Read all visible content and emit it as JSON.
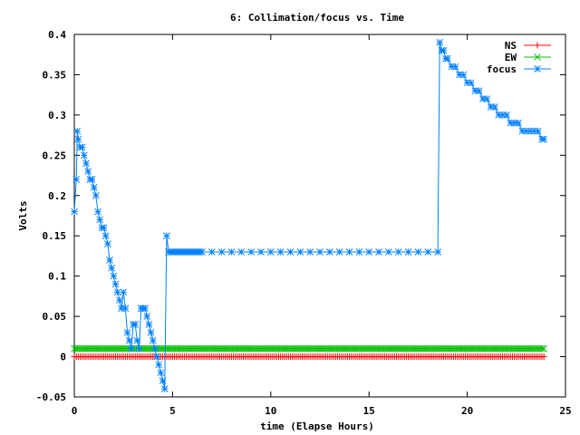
{
  "chart_data": {
    "type": "line",
    "title": "6: Collimation/focus vs. Time",
    "xlabel": "time (Elapse Hours)",
    "ylabel": "Volts",
    "xlim": [
      0,
      25
    ],
    "ylim": [
      -0.05,
      0.4
    ],
    "xticks": [
      0,
      5,
      10,
      15,
      20,
      25
    ],
    "xtick_labels": [
      "0",
      "5",
      "10",
      "15",
      "20",
      "25"
    ],
    "yticks": [
      -0.05,
      0,
      0.05,
      0.1,
      0.15,
      0.2,
      0.25,
      0.3,
      0.35,
      0.4
    ],
    "ytick_labels": [
      "-0.05",
      "0",
      "0.05",
      "0.1",
      "0.15",
      "0.2",
      "0.25",
      "0.3",
      "0.35",
      "0.4"
    ],
    "grid": false,
    "legend_position": "top-right",
    "series": [
      {
        "name": "NS",
        "color": "#ff0000",
        "marker": "plus",
        "x_range": [
          0,
          23.9
        ],
        "constant_y": 0.0,
        "points_per_hour": 10
      },
      {
        "name": "EW",
        "color": "#00c000",
        "marker": "cross",
        "x_range": [
          0,
          23.9
        ],
        "constant_y": 0.01,
        "points_per_hour": 10
      },
      {
        "name": "focus",
        "color": "#0080ff",
        "marker": "star",
        "x": [
          0.0,
          0.1,
          0.15,
          0.2,
          0.3,
          0.4,
          0.5,
          0.6,
          0.7,
          0.8,
          0.9,
          1.0,
          1.1,
          1.2,
          1.3,
          1.4,
          1.5,
          1.6,
          1.7,
          1.8,
          1.9,
          2.0,
          2.1,
          2.2,
          2.3,
          2.4,
          2.5,
          2.6,
          2.7,
          2.8,
          2.9,
          3.0,
          3.1,
          3.2,
          3.3,
          3.4,
          3.5,
          3.6,
          3.7,
          3.8,
          3.9,
          4.0,
          4.1,
          4.2,
          4.3,
          4.4,
          4.5,
          4.6,
          4.7,
          4.8,
          4.9,
          5.0,
          5.1,
          5.2,
          5.3,
          5.4,
          5.5,
          5.6,
          5.7,
          5.8,
          5.9,
          6.0,
          6.1,
          6.2,
          6.3,
          6.4,
          6.5,
          7.0,
          7.5,
          8.0,
          8.5,
          9.0,
          9.5,
          10.0,
          10.5,
          11.0,
          11.5,
          12.0,
          12.5,
          13.0,
          13.5,
          14.0,
          14.5,
          15.0,
          15.5,
          16.0,
          16.5,
          17.0,
          17.5,
          18.0,
          18.5,
          18.6,
          18.7,
          18.8,
          18.9,
          19.0,
          19.2,
          19.4,
          19.6,
          19.8,
          20.0,
          20.2,
          20.4,
          20.6,
          20.8,
          21.0,
          21.2,
          21.4,
          21.6,
          21.8,
          22.0,
          22.2,
          22.4,
          22.6,
          22.8,
          23.0,
          23.2,
          23.4,
          23.6,
          23.8,
          23.9
        ],
        "y": [
          0.18,
          0.22,
          0.28,
          0.27,
          0.26,
          0.26,
          0.25,
          0.24,
          0.23,
          0.22,
          0.22,
          0.21,
          0.2,
          0.18,
          0.17,
          0.16,
          0.16,
          0.15,
          0.14,
          0.12,
          0.11,
          0.1,
          0.09,
          0.08,
          0.07,
          0.06,
          0.08,
          0.06,
          0.03,
          0.02,
          0.01,
          0.04,
          0.04,
          0.02,
          0.01,
          0.06,
          0.06,
          0.06,
          0.05,
          0.04,
          0.03,
          0.02,
          0.01,
          0.0,
          -0.01,
          -0.02,
          -0.03,
          -0.04,
          0.15,
          0.13,
          0.13,
          0.13,
          0.13,
          0.13,
          0.13,
          0.13,
          0.13,
          0.13,
          0.13,
          0.13,
          0.13,
          0.13,
          0.13,
          0.13,
          0.13,
          0.13,
          0.13,
          0.13,
          0.13,
          0.13,
          0.13,
          0.13,
          0.13,
          0.13,
          0.13,
          0.13,
          0.13,
          0.13,
          0.13,
          0.13,
          0.13,
          0.13,
          0.13,
          0.13,
          0.13,
          0.13,
          0.13,
          0.13,
          0.13,
          0.13,
          0.13,
          0.39,
          0.38,
          0.38,
          0.37,
          0.37,
          0.36,
          0.36,
          0.35,
          0.35,
          0.34,
          0.34,
          0.33,
          0.33,
          0.32,
          0.32,
          0.31,
          0.31,
          0.3,
          0.3,
          0.3,
          0.29,
          0.29,
          0.29,
          0.28,
          0.28,
          0.28,
          0.28,
          0.28,
          0.27,
          0.27
        ]
      }
    ]
  }
}
